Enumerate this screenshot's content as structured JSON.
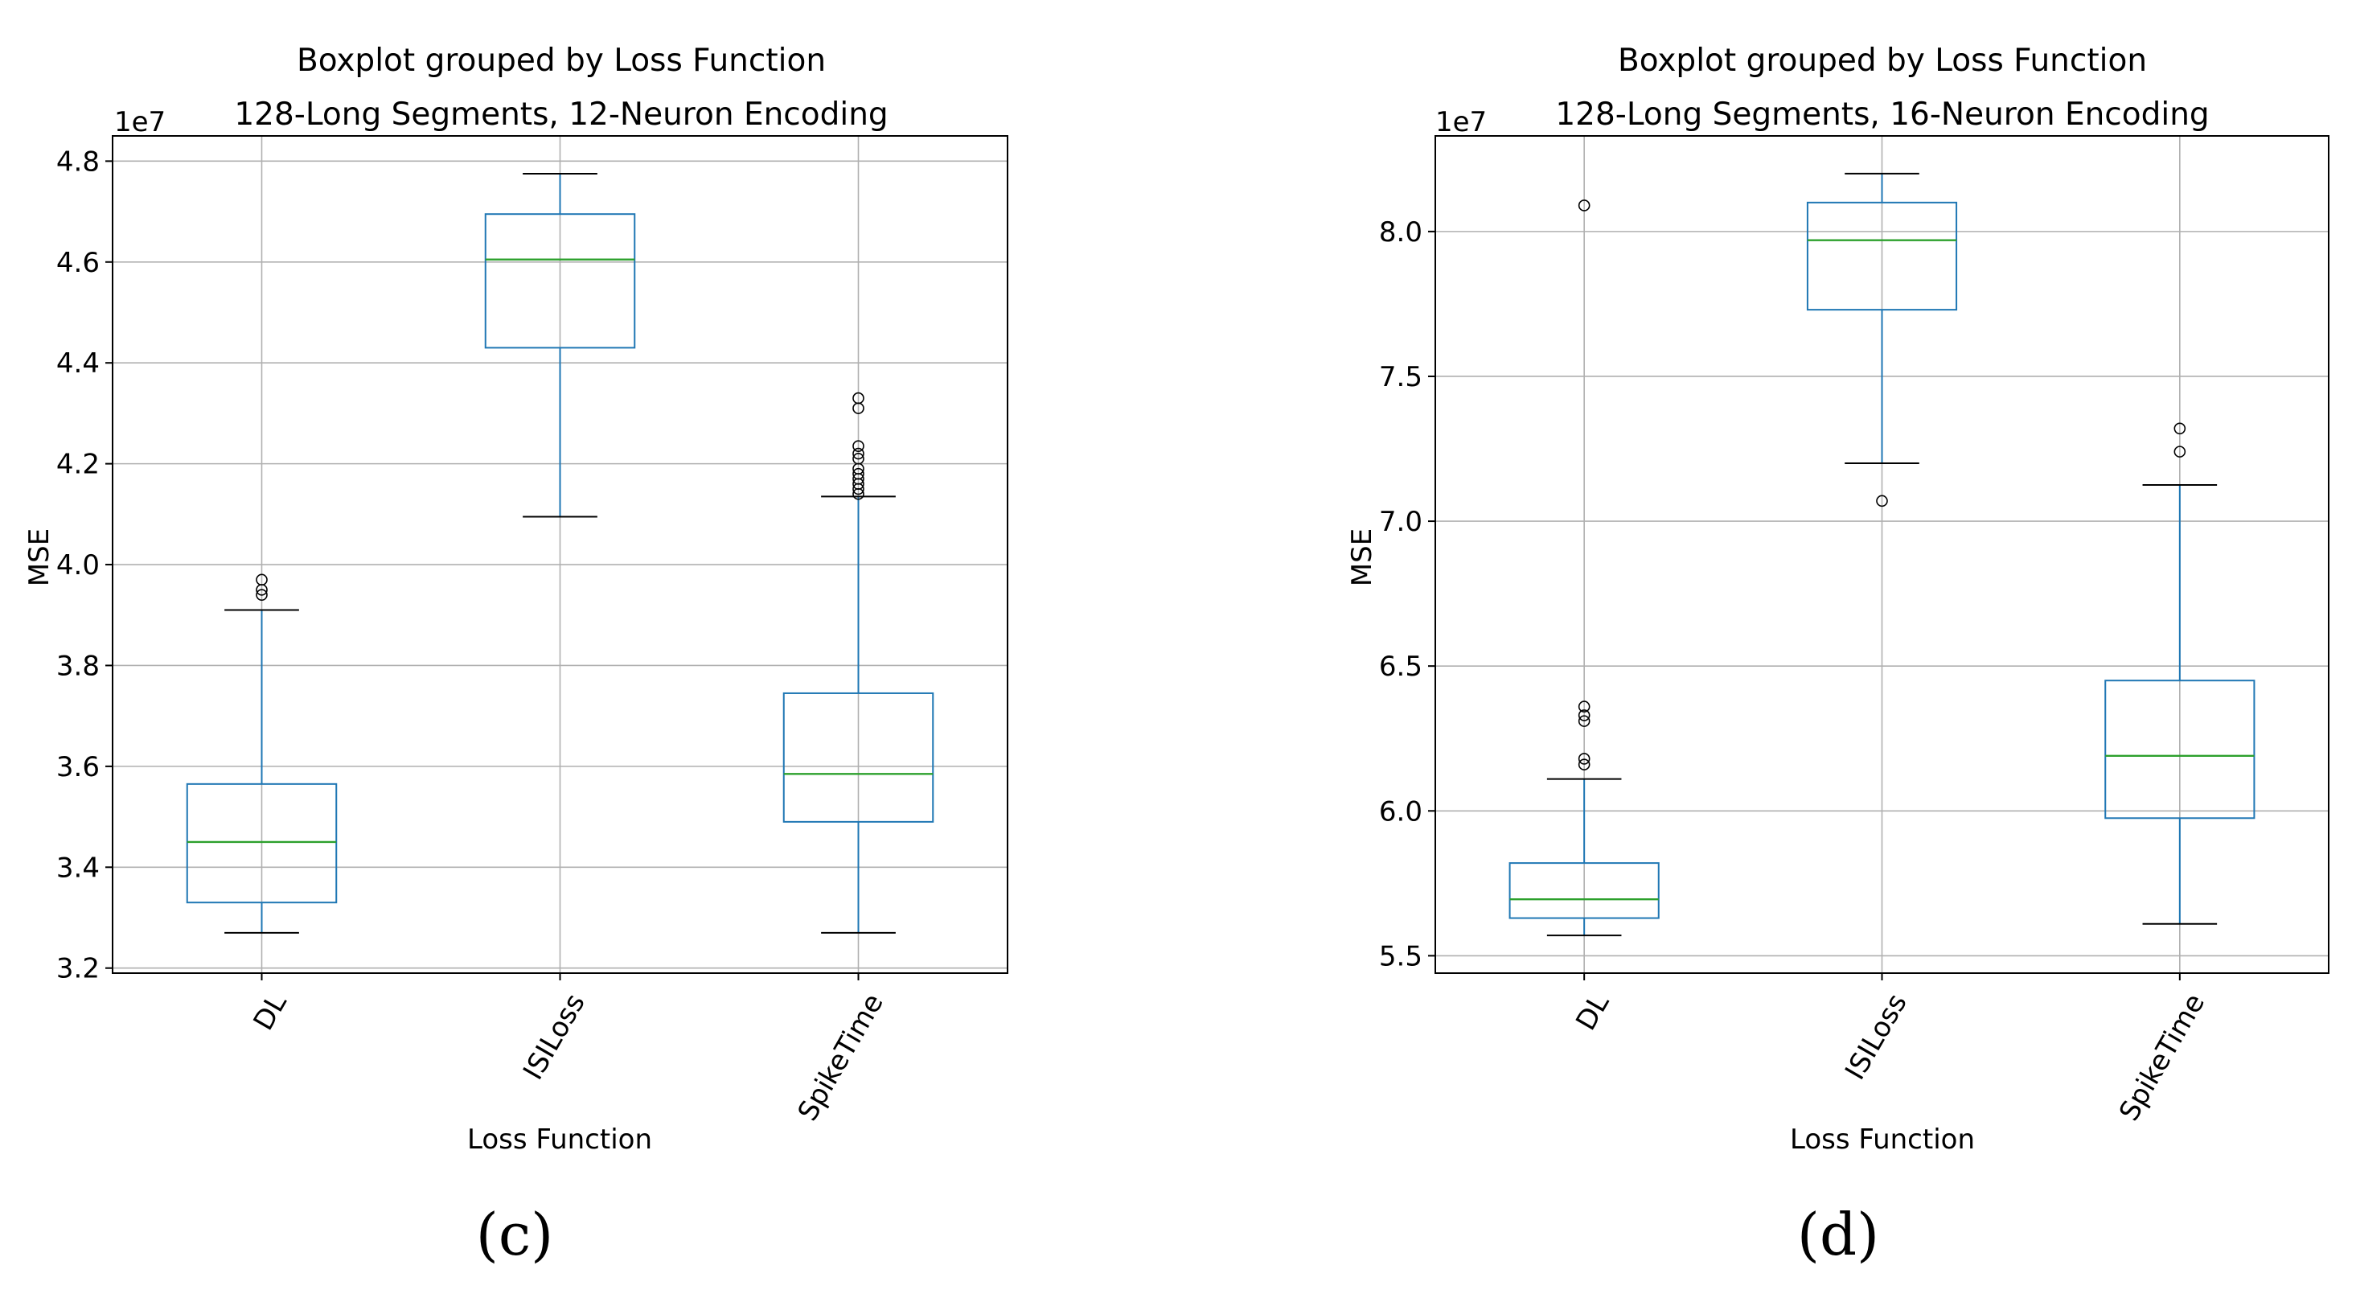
{
  "chart_data": [
    {
      "type": "box",
      "title": "Boxplot grouped by Loss Function",
      "subtitle": "128-Long Segments, 12-Neuron Encoding",
      "xlabel": "Loss Function",
      "ylabel": "MSE",
      "y_multiplier": "1e7",
      "ylim": [
        3.19,
        4.85
      ],
      "yticks": [
        3.2,
        3.4,
        3.6,
        3.8,
        4.0,
        4.2,
        4.4,
        4.6,
        4.8
      ],
      "ytick_labels": [
        "3.2",
        "3.4",
        "3.6",
        "3.8",
        "4.0",
        "4.2",
        "4.4",
        "4.6",
        "4.8"
      ],
      "grid": true,
      "categories": [
        "DL",
        "ISILoss",
        "SpikeTime"
      ],
      "boxes": [
        {
          "whisker_low": 3.27,
          "q1": 3.33,
          "median": 3.45,
          "q3": 3.565,
          "whisker_high": 3.91,
          "outliers": [
            3.94,
            3.95,
            3.97
          ]
        },
        {
          "whisker_low": 4.095,
          "q1": 4.43,
          "median": 4.605,
          "q3": 4.695,
          "whisker_high": 4.775,
          "outliers": []
        },
        {
          "whisker_low": 3.27,
          "q1": 3.49,
          "median": 3.585,
          "q3": 3.745,
          "whisker_high": 4.135,
          "outliers": [
            4.14,
            4.15,
            4.16,
            4.17,
            4.18,
            4.19,
            4.21,
            4.22,
            4.235,
            4.31,
            4.33
          ]
        }
      ],
      "caption": "(c)"
    },
    {
      "type": "box",
      "title": "Boxplot grouped by Loss Function",
      "subtitle": "128-Long Segments, 16-Neuron Encoding",
      "xlabel": "Loss Function",
      "ylabel": "MSE",
      "y_multiplier": "1e7",
      "ylim": [
        5.44,
        8.33
      ],
      "yticks": [
        5.5,
        6.0,
        6.5,
        7.0,
        7.5,
        8.0
      ],
      "ytick_labels": [
        "5.5",
        "6.0",
        "6.5",
        "7.0",
        "7.5",
        "8.0"
      ],
      "grid": true,
      "categories": [
        "DL",
        "ISILoss",
        "SpikeTime"
      ],
      "boxes": [
        {
          "whisker_low": 5.57,
          "q1": 5.63,
          "median": 5.695,
          "q3": 5.82,
          "whisker_high": 6.11,
          "outliers": [
            6.16,
            6.18,
            6.31,
            6.33,
            6.36,
            8.09
          ]
        },
        {
          "whisker_low": 7.2,
          "q1": 7.73,
          "median": 7.97,
          "q3": 8.1,
          "whisker_high": 8.2,
          "outliers": [
            7.07
          ]
        },
        {
          "whisker_low": 5.61,
          "q1": 5.975,
          "median": 6.19,
          "q3": 6.45,
          "whisker_high": 7.125,
          "outliers": [
            7.24,
            7.32
          ]
        }
      ],
      "caption": "(d)"
    }
  ],
  "colors": {
    "box": "#1f77b4",
    "median": "#2ca02c",
    "whisker_cap": "#000000",
    "grid": "#b0b0b0",
    "outlier": "#000000"
  }
}
